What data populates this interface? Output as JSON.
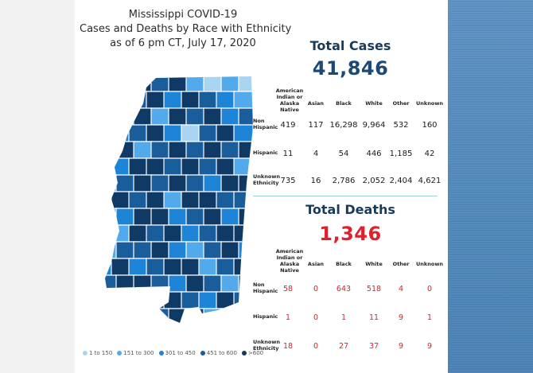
{
  "title": {
    "line1": "Mississippi COVID-19",
    "line2": "Cases and Deaths by Race with Ethnicity",
    "line3": "as of 6 pm CT, July 17, 2020"
  },
  "legend": [
    {
      "label": "1 to 150",
      "color": "#a9d4f2"
    },
    {
      "label": "151 to 300",
      "color": "#52aaec"
    },
    {
      "label": "301 to 450",
      "color": "#1d84d8"
    },
    {
      "label": "451 to 600",
      "color": "#1a5d9b"
    },
    {
      "label": ">600",
      "color": "#0f3a66"
    }
  ],
  "columns": [
    "American Indian or Alaska Native",
    "Asian",
    "Black",
    "White",
    "Other",
    "Unknown"
  ],
  "rows": [
    "Non Hispanic",
    "Hispanic",
    "Unknown Ethnicity"
  ],
  "cases": {
    "heading": "Total Cases",
    "total": "41,846",
    "values": [
      [
        "419",
        "117",
        "16,298",
        "9,964",
        "532",
        "160"
      ],
      [
        "11",
        "4",
        "54",
        "446",
        "1,185",
        "42"
      ],
      [
        "735",
        "16",
        "2,786",
        "2,052",
        "2,404",
        "4,621"
      ]
    ]
  },
  "deaths": {
    "heading": "Total Deaths",
    "total": "1,346",
    "values": [
      [
        "58",
        "0",
        "643",
        "518",
        "4",
        "0"
      ],
      [
        "1",
        "0",
        "1",
        "11",
        "9",
        "1"
      ],
      [
        "18",
        "0",
        "27",
        "37",
        "9",
        "9"
      ]
    ]
  },
  "colors": {
    "cases_total": "#1a4a75",
    "deaths_total": "#e0202a"
  }
}
